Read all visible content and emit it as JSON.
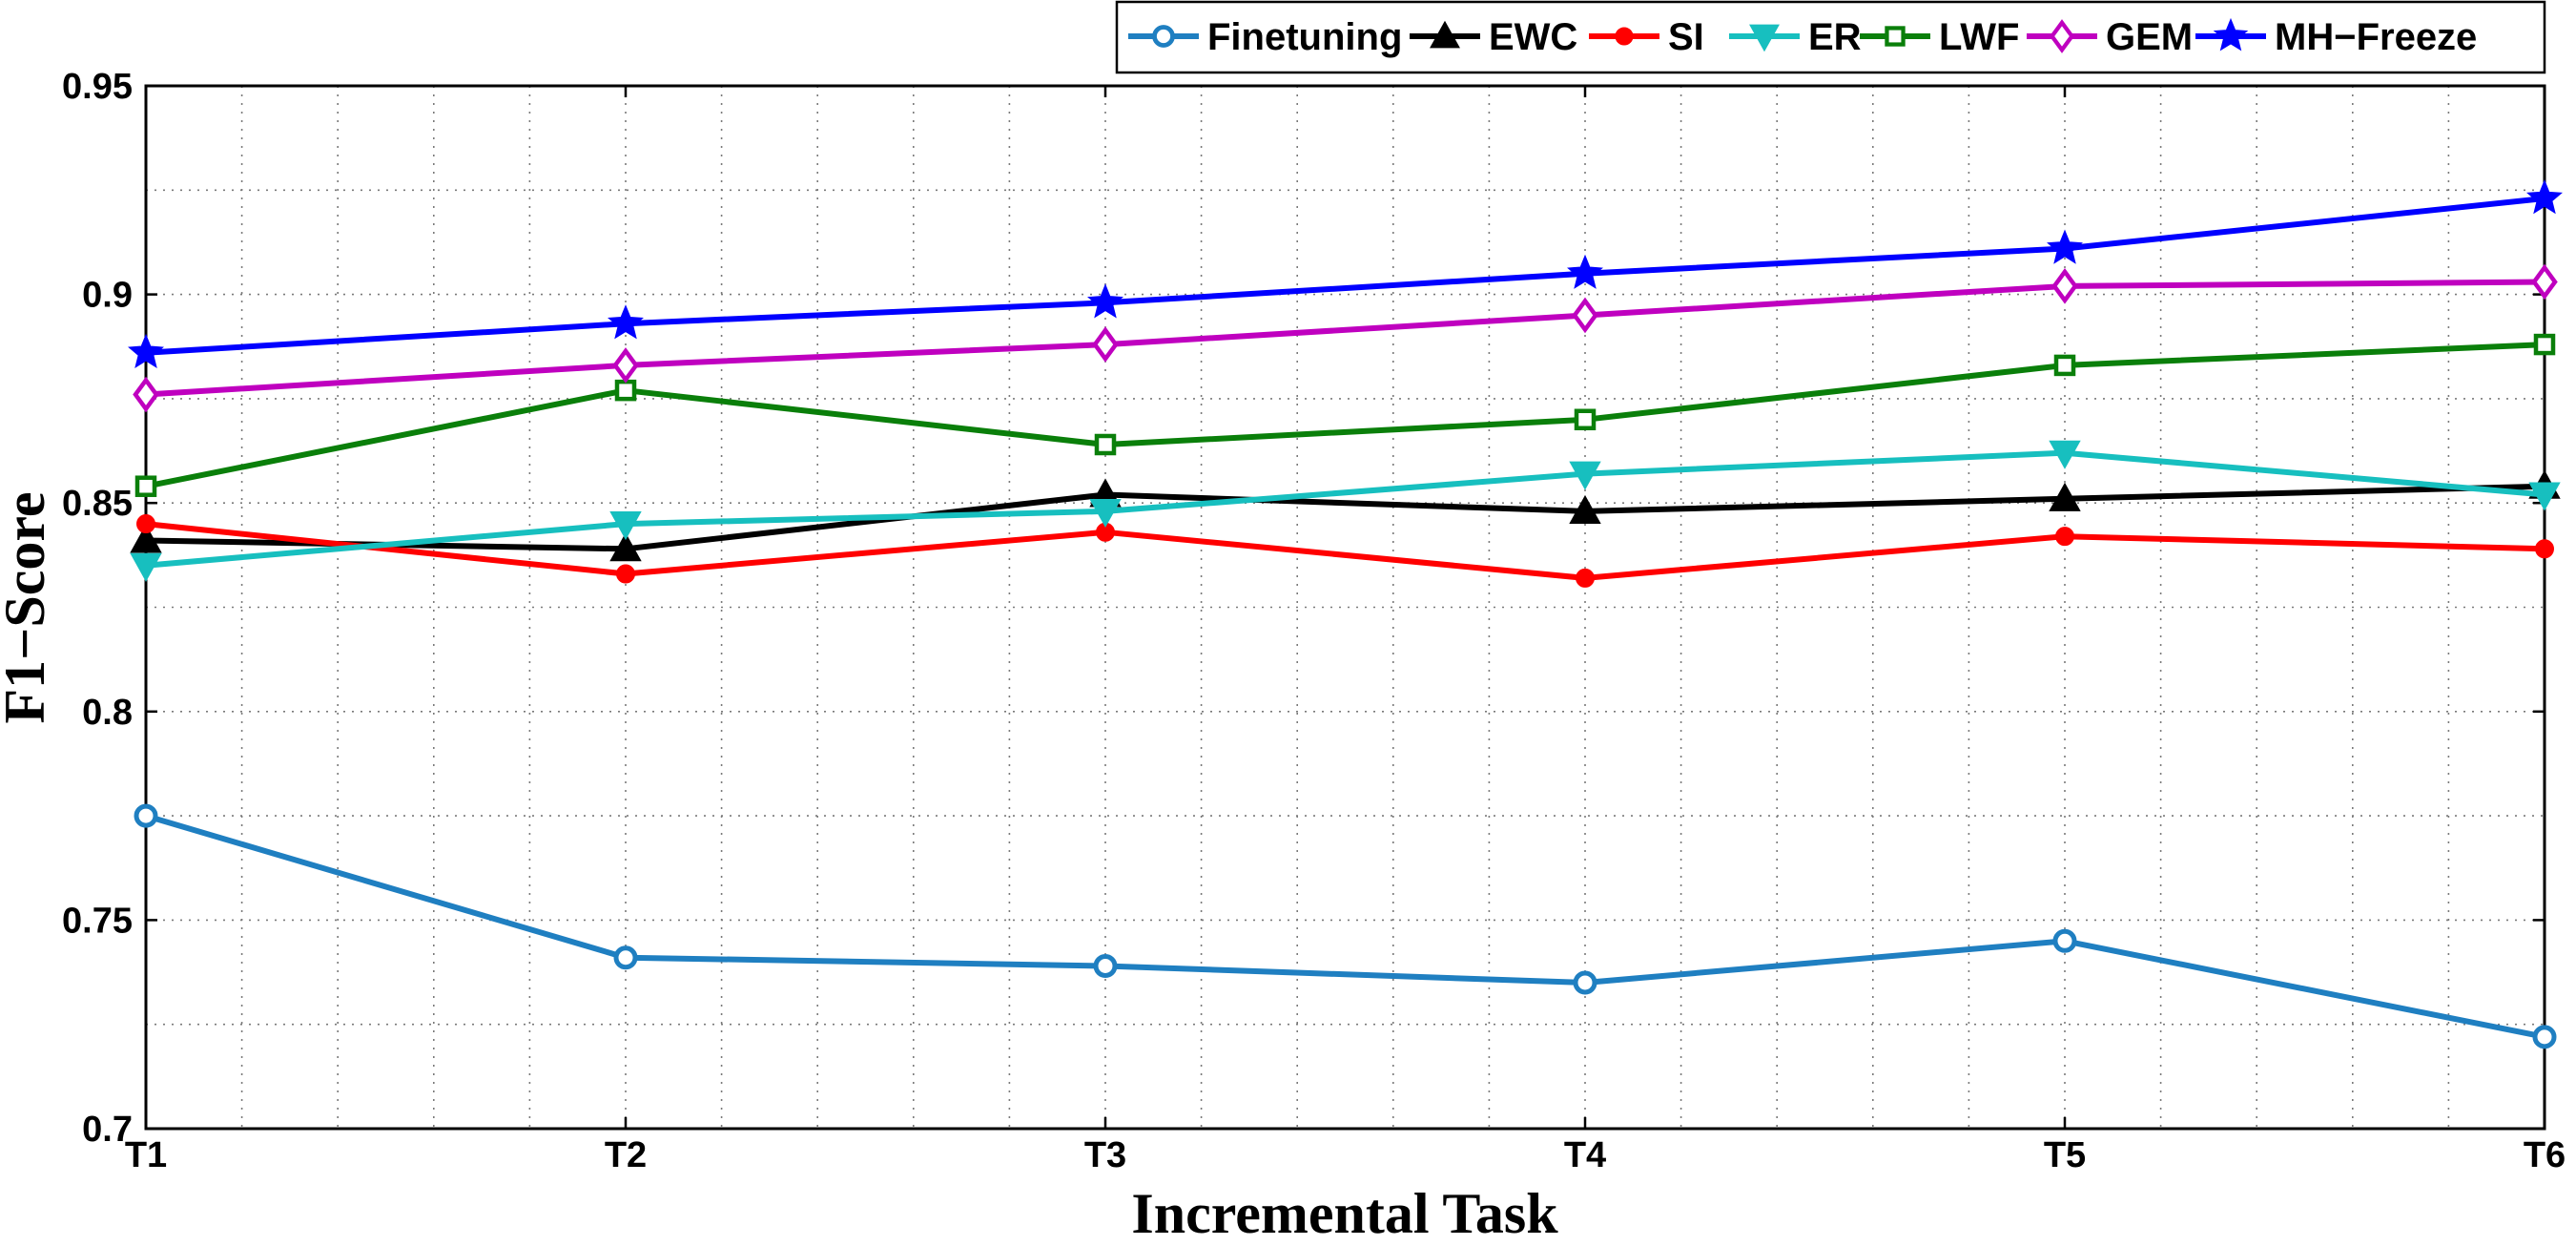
{
  "chart_data": {
    "type": "line",
    "title": "",
    "xlabel": "Incremental Task",
    "ylabel": "F1−Score",
    "categories": [
      "T1",
      "T2",
      "T3",
      "T4",
      "T5",
      "T6"
    ],
    "ylim": [
      0.7,
      0.95
    ],
    "yticks": [
      0.7,
      0.75,
      0.8,
      0.85,
      0.9,
      0.95
    ],
    "ytick_labels": [
      "0.7",
      "0.75",
      "0.8",
      "0.85",
      "0.9",
      "0.95"
    ],
    "grid": true,
    "legend_position": "top-right",
    "series": [
      {
        "name": "Finetuning",
        "color": "#1f7fc1",
        "marker": "circle",
        "values": [
          0.775,
          0.741,
          0.739,
          0.735,
          0.745,
          0.722
        ]
      },
      {
        "name": "EWC",
        "color": "#000000",
        "marker": "triangle-up",
        "values": [
          0.841,
          0.839,
          0.852,
          0.848,
          0.851,
          0.854
        ]
      },
      {
        "name": "SI",
        "color": "#ff0000",
        "marker": "dot",
        "values": [
          0.845,
          0.833,
          0.843,
          0.832,
          0.842,
          0.839
        ]
      },
      {
        "name": "ER",
        "color": "#17bfbf",
        "marker": "triangle-down",
        "values": [
          0.835,
          0.845,
          0.848,
          0.857,
          0.862,
          0.852
        ]
      },
      {
        "name": "LWF",
        "color": "#0a7f0a",
        "marker": "square",
        "values": [
          0.854,
          0.877,
          0.864,
          0.87,
          0.883,
          0.888
        ]
      },
      {
        "name": "GEM",
        "color": "#bf00bf",
        "marker": "diamond",
        "values": [
          0.876,
          0.883,
          0.888,
          0.895,
          0.902,
          0.903
        ]
      },
      {
        "name": "MH−Freeze",
        "color": "#0000ff",
        "marker": "star",
        "values": [
          0.886,
          0.893,
          0.898,
          0.905,
          0.911,
          0.923
        ]
      }
    ]
  }
}
